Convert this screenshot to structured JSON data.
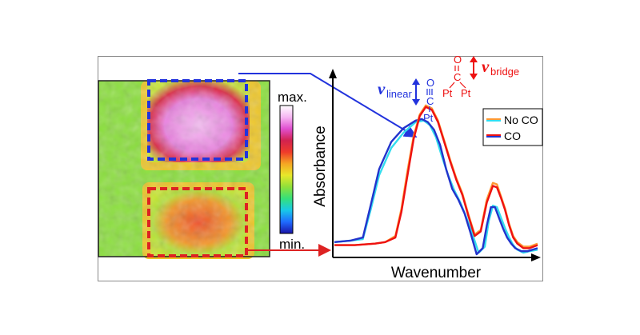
{
  "chart_data": [
    {
      "type": "heatmap",
      "colorbar": {
        "max_label": "max.",
        "min_label": "min.",
        "colormap": [
          "#1a14a8",
          "#1f6bff",
          "#18c9e8",
          "#35e07a",
          "#8fe03a",
          "#e8e82a",
          "#f5a623",
          "#ef3b2a",
          "#d2224f",
          "#e04fd0",
          "#f6b6f2",
          "#ffffff"
        ]
      },
      "regions": [
        {
          "name": "linear",
          "level": 0.92,
          "box_color": "#2233dd"
        },
        {
          "name": "bridge",
          "level": 0.62,
          "box_color": "#dd2222"
        }
      ],
      "background_level": 0.36
    },
    {
      "type": "line",
      "xlabel": "Wavenumber",
      "ylabel": "Absorbance",
      "x_range": [
        0,
        100
      ],
      "y_range": [
        0,
        1
      ],
      "legend": {
        "placement": "top-right",
        "entries": [
          {
            "label": "No CO",
            "colors": [
              "#ff9933",
              "#33ddee"
            ]
          },
          {
            "label": "CO",
            "colors": [
              "#ee1111",
              "#2233cc"
            ]
          }
        ]
      },
      "series": [
        {
          "color": "#33ddee",
          "x": [
            0,
            8,
            14,
            18,
            22,
            28,
            34,
            40,
            44,
            47,
            50,
            53,
            56,
            59,
            62,
            65,
            68,
            71,
            74,
            76,
            78,
            80,
            82,
            84,
            86,
            88,
            90,
            93,
            96,
            100
          ],
          "y": [
            0.08,
            0.09,
            0.1,
            0.3,
            0.52,
            0.7,
            0.8,
            0.87,
            0.88,
            0.85,
            0.77,
            0.64,
            0.52,
            0.42,
            0.34,
            0.24,
            0.13,
            0.01,
            0.05,
            0.22,
            0.32,
            0.31,
            0.24,
            0.17,
            0.11,
            0.06,
            0.03,
            0.01,
            0.02,
            0.03
          ]
        },
        {
          "color": "#2233cc",
          "x": [
            0,
            8,
            14,
            18,
            22,
            28,
            34,
            40,
            43,
            46,
            49,
            52,
            55,
            58,
            61,
            64,
            67,
            70,
            73,
            75,
            77,
            79,
            81,
            83,
            85,
            87,
            89,
            92,
            95,
            100
          ],
          "y": [
            0.08,
            0.09,
            0.11,
            0.33,
            0.56,
            0.74,
            0.83,
            0.88,
            0.89,
            0.87,
            0.82,
            0.72,
            0.56,
            0.43,
            0.36,
            0.27,
            0.14,
            0.0,
            0.04,
            0.19,
            0.31,
            0.31,
            0.24,
            0.17,
            0.11,
            0.07,
            0.04,
            0.02,
            0.02,
            0.04
          ]
        },
        {
          "color": "#ff9933",
          "x": [
            0,
            10,
            20,
            25,
            30,
            33,
            36,
            39,
            42,
            45,
            48,
            51,
            54,
            57,
            60,
            63,
            66,
            69,
            72,
            75,
            78,
            80,
            82,
            84,
            86,
            88,
            90,
            93,
            96,
            100
          ],
          "y": [
            0.06,
            0.06,
            0.07,
            0.08,
            0.12,
            0.3,
            0.55,
            0.78,
            0.92,
            0.98,
            0.96,
            0.88,
            0.75,
            0.62,
            0.5,
            0.4,
            0.26,
            0.13,
            0.16,
            0.36,
            0.47,
            0.46,
            0.38,
            0.3,
            0.2,
            0.12,
            0.08,
            0.05,
            0.05,
            0.07
          ]
        },
        {
          "color": "#ee1111",
          "x": [
            0,
            10,
            20,
            25,
            30,
            33,
            36,
            39,
            42,
            45,
            48,
            51,
            54,
            57,
            60,
            63,
            66,
            69,
            72,
            75,
            78,
            80,
            82,
            84,
            86,
            88,
            90,
            93,
            96,
            100
          ],
          "y": [
            0.06,
            0.06,
            0.07,
            0.08,
            0.11,
            0.28,
            0.52,
            0.76,
            0.91,
            0.97,
            0.95,
            0.87,
            0.74,
            0.61,
            0.49,
            0.39,
            0.25,
            0.12,
            0.15,
            0.34,
            0.45,
            0.44,
            0.37,
            0.29,
            0.19,
            0.11,
            0.07,
            0.04,
            0.04,
            0.06
          ]
        }
      ],
      "annotations": {
        "linear": {
          "nu": "v",
          "sub": "linear",
          "atom_top": "O",
          "atom_mid": "C",
          "atom_bottom": "Pt",
          "color": "#2233dd"
        },
        "bridge": {
          "nu": "v",
          "sub": "bridge",
          "atom_top": "O",
          "atom_mid": "C",
          "atom_bottom_left": "Pt",
          "atom_bottom_right": "Pt",
          "color": "#ee1111"
        }
      }
    }
  ]
}
